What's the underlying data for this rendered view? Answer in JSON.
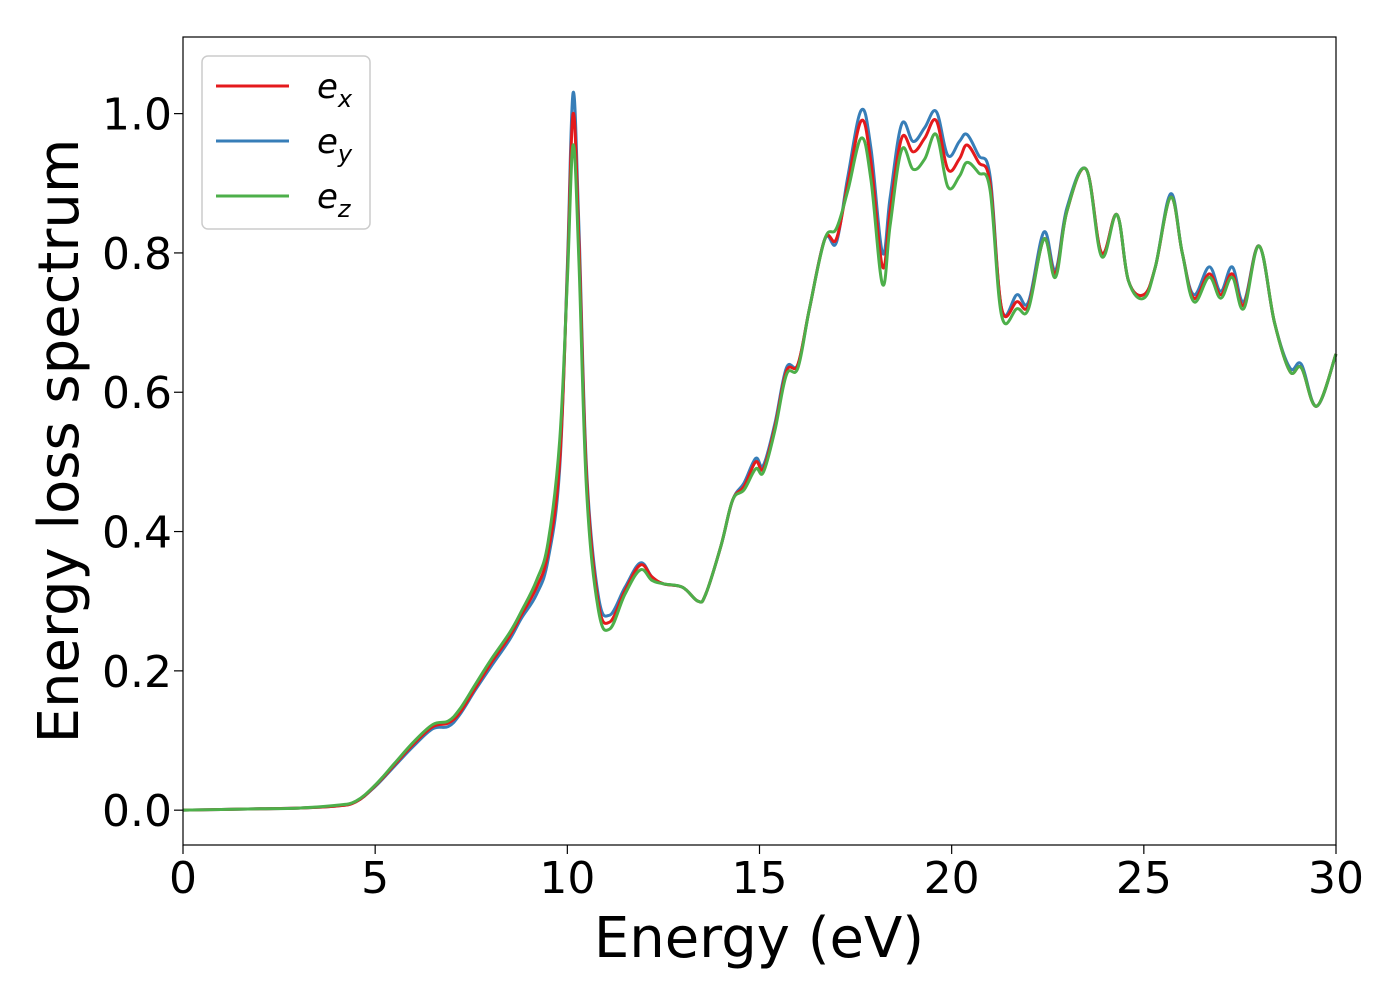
{
  "chart_data": {
    "type": "line",
    "xlabel": "Energy (eV)",
    "ylabel": "Energy loss spectrum",
    "xlim": [
      0,
      30
    ],
    "ylim": [
      -0.05,
      1.11
    ],
    "xticks": [
      0,
      5,
      10,
      15,
      20,
      25,
      30
    ],
    "xtick_labels": [
      "0",
      "5",
      "10",
      "15",
      "20",
      "25",
      "30"
    ],
    "yticks": [
      0.0,
      0.2,
      0.4,
      0.6,
      0.8,
      1.0
    ],
    "ytick_labels": [
      "0.0",
      "0.2",
      "0.4",
      "0.6",
      "0.8",
      "1.0"
    ],
    "grid": false,
    "legend": {
      "placement": "top-left",
      "entries": [
        {
          "base": "e",
          "sub": "x"
        },
        {
          "base": "e",
          "sub": "y"
        },
        {
          "base": "e",
          "sub": "z"
        }
      ]
    },
    "x": [
      0,
      1,
      2,
      3,
      4,
      4.5,
      5,
      5.5,
      6,
      6.5,
      6.9,
      7.2,
      7.6,
      8,
      8.5,
      8.8,
      9.2,
      9.5,
      9.8,
      10,
      10.15,
      10.3,
      10.5,
      10.8,
      11.1,
      11.5,
      11.9,
      12.2,
      12.5,
      13,
      13.4,
      13.6,
      14,
      14.3,
      14.6,
      14.9,
      15.1,
      15.4,
      15.7,
      16,
      16.3,
      16.7,
      17,
      17.3,
      17.65,
      17.9,
      18.2,
      18.4,
      18.7,
      19,
      19.3,
      19.6,
      19.9,
      20.2,
      20.4,
      20.7,
      21,
      21.3,
      21.7,
      22,
      22.4,
      22.7,
      23,
      23.5,
      23.9,
      24.3,
      24.6,
      25,
      25.3,
      25.7,
      26,
      26.3,
      26.7,
      27,
      27.3,
      27.6,
      28,
      28.4,
      28.8,
      29.1,
      29.5,
      30
    ],
    "series": [
      {
        "name": "e_x",
        "color": "#e41a1c",
        "values": [
          0.0,
          0.001,
          0.002,
          0.003,
          0.006,
          0.012,
          0.035,
          0.065,
          0.095,
          0.12,
          0.125,
          0.14,
          0.175,
          0.21,
          0.25,
          0.28,
          0.32,
          0.37,
          0.5,
          0.77,
          1.0,
          0.82,
          0.48,
          0.3,
          0.27,
          0.315,
          0.352,
          0.335,
          0.325,
          0.32,
          0.3,
          0.31,
          0.38,
          0.445,
          0.465,
          0.5,
          0.49,
          0.55,
          0.63,
          0.64,
          0.72,
          0.82,
          0.82,
          0.9,
          0.99,
          0.93,
          0.78,
          0.86,
          0.965,
          0.945,
          0.965,
          0.99,
          0.92,
          0.935,
          0.955,
          0.93,
          0.9,
          0.72,
          0.73,
          0.725,
          0.82,
          0.77,
          0.86,
          0.92,
          0.8,
          0.855,
          0.76,
          0.74,
          0.78,
          0.88,
          0.8,
          0.735,
          0.77,
          0.74,
          0.77,
          0.725,
          0.81,
          0.7,
          0.63,
          0.635,
          0.58,
          0.655
        ]
      },
      {
        "name": "e_y",
        "color": "#377eb8",
        "values": [
          0.0,
          0.001,
          0.002,
          0.003,
          0.006,
          0.012,
          0.034,
          0.063,
          0.092,
          0.117,
          0.12,
          0.137,
          0.172,
          0.205,
          0.245,
          0.275,
          0.31,
          0.36,
          0.49,
          0.78,
          1.03,
          0.84,
          0.49,
          0.31,
          0.28,
          0.32,
          0.355,
          0.335,
          0.325,
          0.32,
          0.3,
          0.31,
          0.38,
          0.445,
          0.47,
          0.505,
          0.495,
          0.555,
          0.635,
          0.64,
          0.72,
          0.82,
          0.815,
          0.91,
          1.005,
          0.95,
          0.8,
          0.88,
          0.985,
          0.96,
          0.98,
          1.003,
          0.94,
          0.96,
          0.97,
          0.94,
          0.91,
          0.72,
          0.74,
          0.73,
          0.83,
          0.775,
          0.865,
          0.92,
          0.8,
          0.855,
          0.76,
          0.74,
          0.78,
          0.885,
          0.8,
          0.74,
          0.78,
          0.745,
          0.78,
          0.73,
          0.81,
          0.7,
          0.635,
          0.64,
          0.58,
          0.655
        ]
      },
      {
        "name": "e_z",
        "color": "#4daf4a",
        "values": [
          0.0,
          0.001,
          0.002,
          0.003,
          0.007,
          0.013,
          0.036,
          0.067,
          0.098,
          0.123,
          0.128,
          0.145,
          0.18,
          0.215,
          0.255,
          0.285,
          0.33,
          0.385,
          0.53,
          0.76,
          0.955,
          0.79,
          0.46,
          0.29,
          0.26,
          0.31,
          0.345,
          0.33,
          0.325,
          0.32,
          0.3,
          0.31,
          0.38,
          0.445,
          0.46,
          0.49,
          0.485,
          0.545,
          0.625,
          0.635,
          0.72,
          0.82,
          0.835,
          0.89,
          0.965,
          0.905,
          0.755,
          0.84,
          0.948,
          0.92,
          0.935,
          0.97,
          0.895,
          0.91,
          0.93,
          0.915,
          0.89,
          0.71,
          0.72,
          0.72,
          0.82,
          0.765,
          0.86,
          0.92,
          0.795,
          0.855,
          0.76,
          0.735,
          0.78,
          0.88,
          0.8,
          0.73,
          0.765,
          0.735,
          0.765,
          0.72,
          0.81,
          0.7,
          0.63,
          0.635,
          0.58,
          0.655
        ]
      }
    ]
  }
}
